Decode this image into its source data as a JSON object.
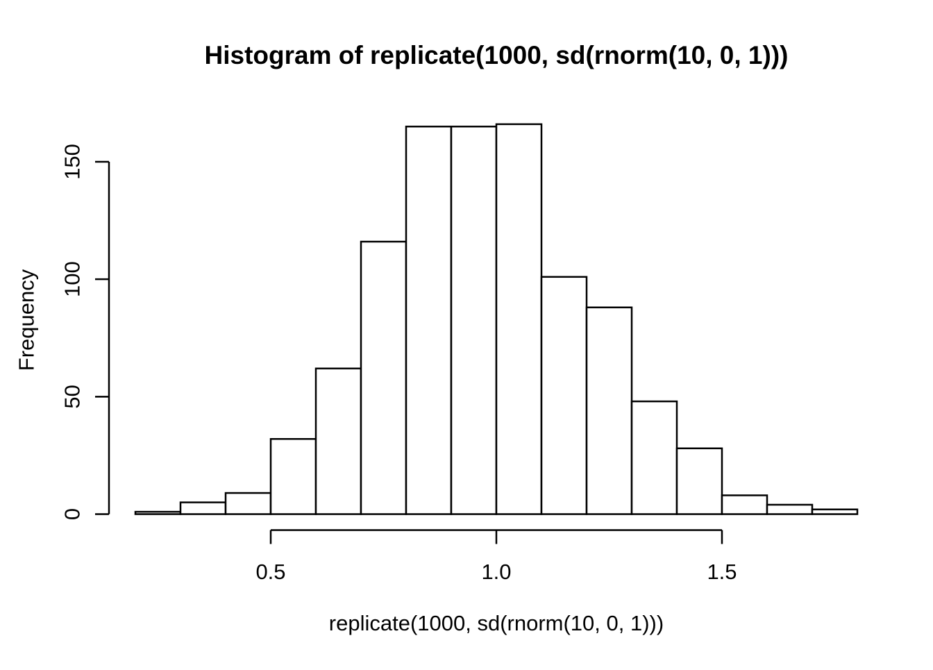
{
  "figure": {
    "background": "#ffffff"
  },
  "chart_data": {
    "type": "histogram",
    "title": "Histogram of replicate(1000, sd(rnorm(10, 0, 1)))",
    "xlabel": "replicate(1000, sd(rnorm(10, 0, 1)))",
    "ylabel": "Frequency",
    "breaks": [
      0.2,
      0.3,
      0.4,
      0.5,
      0.6,
      0.7,
      0.8,
      0.9,
      1.0,
      1.1,
      1.2,
      1.3,
      1.4,
      1.5,
      1.6,
      1.7,
      1.8
    ],
    "counts": [
      1,
      5,
      9,
      32,
      62,
      116,
      165,
      165,
      166,
      101,
      88,
      48,
      28,
      8,
      4,
      2
    ],
    "total_n": 1000,
    "x_ticks": [
      {
        "value": 0.5,
        "label": "0.5"
      },
      {
        "value": 1.0,
        "label": "1.0"
      },
      {
        "value": 1.5,
        "label": "1.5"
      }
    ],
    "y_ticks": [
      {
        "value": 0,
        "label": "0"
      },
      {
        "value": 50,
        "label": "50"
      },
      {
        "value": 100,
        "label": "100"
      },
      {
        "value": 150,
        "label": "150"
      }
    ],
    "xlim": [
      0.2,
      1.8
    ],
    "ylim": [
      0,
      166
    ],
    "grid": false,
    "legend": false,
    "bar_fill": "#ffffff",
    "line_color": "#000000",
    "text_color": "#000000"
  }
}
